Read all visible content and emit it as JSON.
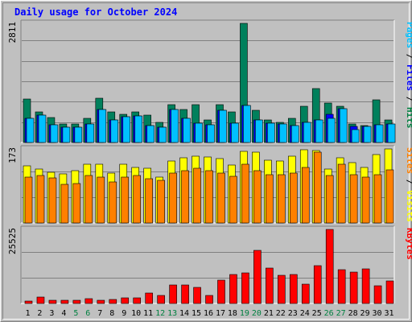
{
  "chart_data": {
    "title": "Daily usage for October 2024",
    "x": [
      "1",
      "2",
      "3",
      "4",
      "5",
      "6",
      "7",
      "8",
      "9",
      "10",
      "11",
      "12",
      "13",
      "14",
      "15",
      "16",
      "17",
      "18",
      "19",
      "20",
      "21",
      "22",
      "23",
      "24",
      "25",
      "26",
      "27",
      "28",
      "29",
      "30",
      "31"
    ],
    "weekend_days": [
      "5",
      "6",
      "12",
      "13",
      "19",
      "20",
      "26",
      "27"
    ],
    "panels": [
      {
        "type": "bar",
        "max_label": "2811",
        "ymax": 2811,
        "ylabel_parts": [
          {
            "text": "Pages",
            "color": "#00c0ff"
          },
          {
            "text": " / ",
            "color": "#000000"
          },
          {
            "text": "Files",
            "color": "#0000ff"
          },
          {
            "text": " / ",
            "color": "#000000"
          },
          {
            "text": "Hits",
            "color": "#008040"
          }
        ],
        "series": [
          {
            "name": "Hits",
            "color": "#00805c",
            "values": [
              1010,
              720,
              580,
              440,
              440,
              560,
              1030,
              720,
              660,
              720,
              640,
              480,
              880,
              770,
              880,
              520,
              890,
              720,
              2790,
              760,
              520,
              480,
              560,
              840,
              1270,
              920,
              850,
              430,
              390,
              1000,
              520
            ]
          },
          {
            "name": "Files",
            "color": "#0000ff",
            "values": [
              560,
              640,
              420,
              360,
              360,
              440,
              780,
              520,
              600,
              620,
              400,
              360,
              770,
              560,
              450,
              420,
              750,
              460,
              870,
              520,
              450,
              430,
              390,
              470,
              530,
              660,
              800,
              380,
              380,
              410,
              440
            ]
          },
          {
            "name": "Pages",
            "color": "#00c0ff",
            "values": [
              560,
              640,
              420,
              360,
              360,
              440,
              780,
              520,
              600,
              620,
              400,
              360,
              770,
              560,
              450,
              420,
              750,
              460,
              870,
              520,
              450,
              430,
              390,
              470,
              530,
              560,
              800,
              310,
              380,
              410,
              440
            ]
          }
        ]
      },
      {
        "type": "bar",
        "max_label": "173",
        "ymax": 173,
        "ylabel_parts": [
          {
            "text": "Sites",
            "color": "#ff8000"
          },
          {
            "text": " / ",
            "color": "#000000"
          },
          {
            "text": "Visits",
            "color": "#ffff00"
          }
        ],
        "series": [
          {
            "name": "Visits",
            "color": "#ffff00",
            "values": [
              132,
              124,
              118,
              114,
              120,
              136,
              136,
              116,
              136,
              128,
              126,
              106,
              144,
              150,
              154,
              152,
              148,
              134,
              166,
              164,
              146,
              144,
              154,
              170,
              168,
              124,
              150,
              140,
              128,
              158,
              172
            ]
          },
          {
            "name": "Sites",
            "color": "#ff8000",
            "values": [
              106,
              110,
              104,
              90,
              92,
              110,
              106,
              94,
              106,
              110,
              102,
              98,
              116,
              120,
              126,
              120,
              116,
              108,
              136,
              120,
              112,
              112,
              116,
              128,
              164,
              110,
              136,
              112,
              106,
              112,
              122
            ]
          }
        ]
      },
      {
        "type": "bar",
        "max_label": "25525",
        "ymax": 25525,
        "ylabel_parts": [
          {
            "text": "KBytes",
            "color": "#ff0000"
          }
        ],
        "series": [
          {
            "name": "KBytes",
            "color": "#ff0000",
            "values": [
              900,
              2300,
              1200,
              1000,
              1200,
              1600,
              1000,
              1300,
              1900,
              1800,
              3600,
              2800,
              6400,
              6400,
              5400,
              2800,
              8000,
              10000,
              10400,
              18200,
              12000,
              9700,
              9900,
              6600,
              12800,
              25300,
              11600,
              10600,
              11800,
              6000,
              7800
            ]
          }
        ]
      }
    ]
  }
}
